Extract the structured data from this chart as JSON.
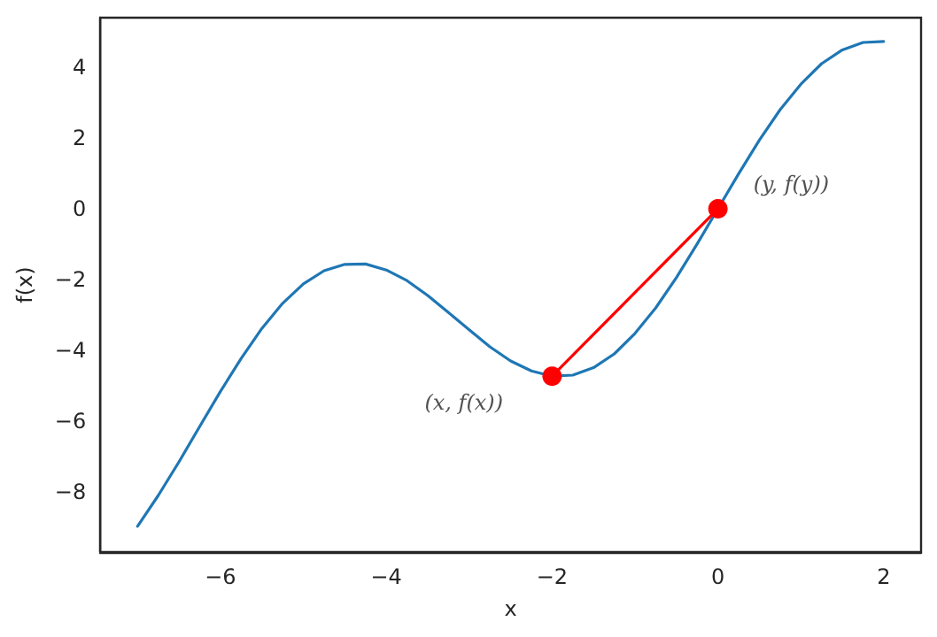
{
  "chart_data": {
    "type": "line",
    "xlabel": "x",
    "ylabel": "f(x)",
    "xlim": [
      -7.45,
      2.45
    ],
    "ylim": [
      -9.7,
      5.4
    ],
    "xticks": [
      -6,
      -4,
      -2,
      0,
      2
    ],
    "yticks": [
      -8,
      -6,
      -4,
      -2,
      0,
      2,
      4
    ],
    "grid": false,
    "series": [
      {
        "color": "#1f77b4",
        "marker": "none",
        "x": [
          -7,
          -6.75,
          -6.5,
          -6.25,
          -6,
          -5.75,
          -5.5,
          -5.25,
          -5,
          -4.75,
          -4.5,
          -4.25,
          -4,
          -3.75,
          -3.5,
          -3.25,
          -3,
          -2.75,
          -2.5,
          -2.25,
          -2,
          -1.75,
          -1.5,
          -1.25,
          -1,
          -0.75,
          -0.5,
          -0.25,
          0,
          0.25,
          0.5,
          0.75,
          1,
          1.25,
          1.5,
          1.75,
          2
        ],
        "values": [
          -8.97,
          -8.1,
          -7.15,
          -6.15,
          -5.16,
          -4.23,
          -3.38,
          -2.67,
          -2.12,
          -1.75,
          -1.57,
          -1.56,
          -1.73,
          -2.03,
          -2.45,
          -2.93,
          -3.42,
          -3.9,
          -4.3,
          -4.58,
          -4.73,
          -4.7,
          -4.49,
          -4.1,
          -3.52,
          -2.8,
          -1.94,
          -0.99,
          0,
          0.99,
          1.94,
          2.8,
          3.52,
          4.1,
          4.49,
          4.7,
          4.73
        ]
      },
      {
        "color": "#ff0000",
        "marker": "circle",
        "x": [
          -2,
          0
        ],
        "values": [
          -4.73,
          0
        ]
      }
    ],
    "annotations": [
      {
        "text": "(x, f(x))",
        "x": -2,
        "y": -4.73
      },
      {
        "text": "(y, f(y))",
        "x": 0,
        "y": 0
      }
    ]
  }
}
